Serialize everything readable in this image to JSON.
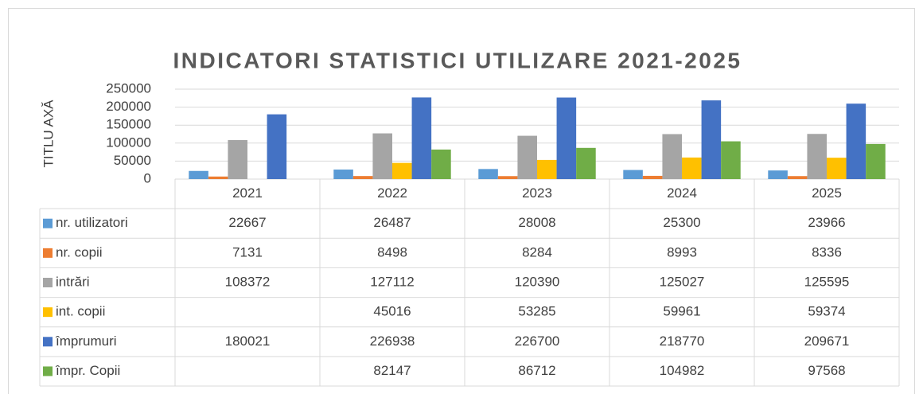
{
  "chart_data": {
    "type": "bar",
    "title": "INDICATORI STATISTICI UTILIZARE 2021-2025",
    "y_axis_label": "TITLU AXĂ",
    "categories": [
      "2021",
      "2022",
      "2023",
      "2024",
      "2025"
    ],
    "series": [
      {
        "name": "nr. utilizatori",
        "color": "#5b9bd5",
        "values": [
          22667,
          26487,
          28008,
          25300,
          23966
        ]
      },
      {
        "name": "nr. copii",
        "color": "#ed7d31",
        "values": [
          7131,
          8498,
          8284,
          8993,
          8336
        ]
      },
      {
        "name": "intrări",
        "color": "#a5a5a5",
        "values": [
          108372,
          127112,
          120390,
          125027,
          125595
        ]
      },
      {
        "name": "int. copii",
        "color": "#ffc000",
        "values": [
          null,
          45016,
          53285,
          59961,
          59374
        ]
      },
      {
        "name": "împrumuri",
        "color": "#4472c4",
        "values": [
          180021,
          226938,
          226700,
          218770,
          209671
        ]
      },
      {
        "name": "împr. Copii",
        "color": "#70ad47",
        "values": [
          null,
          82147,
          86712,
          104982,
          97568
        ]
      }
    ],
    "ylim": [
      0,
      250000
    ],
    "yticks": [
      0,
      50000,
      100000,
      150000,
      200000,
      250000
    ],
    "grid": true
  }
}
